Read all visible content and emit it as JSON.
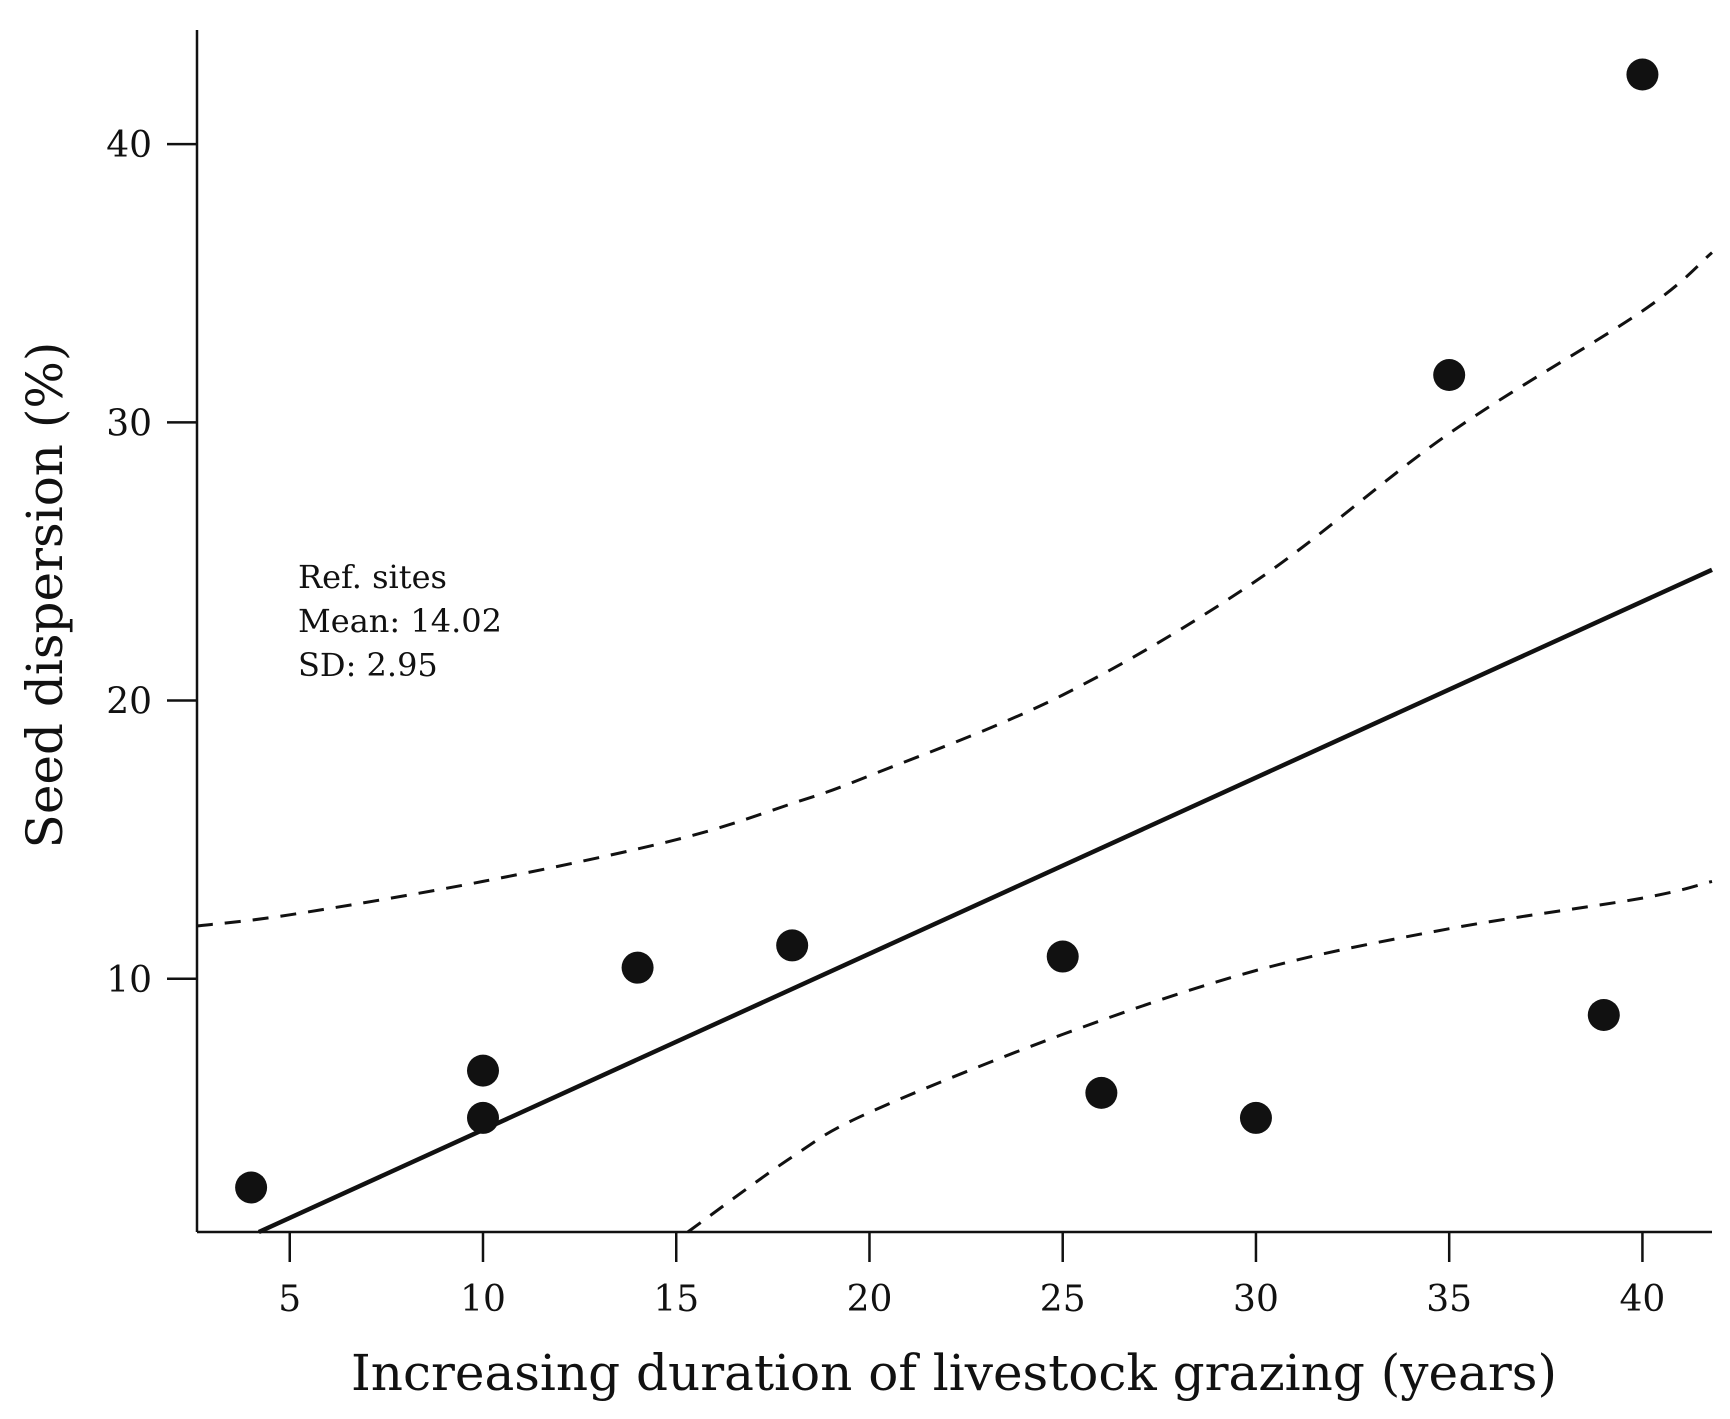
{
  "chart_data": {
    "type": "scatter",
    "title": "",
    "xlabel": "Increasing duration of livestock grazing (years)",
    "ylabel": "Seed dispersion (%)",
    "xlim": [
      2.6,
      41.8
    ],
    "ylim": [
      0.9,
      44.1
    ],
    "xticks": [
      5,
      10,
      15,
      20,
      25,
      30,
      35,
      40
    ],
    "yticks": [
      10,
      20,
      30,
      40
    ],
    "points": [
      {
        "x": 4,
        "y": 2.5
      },
      {
        "x": 10,
        "y": 6.7
      },
      {
        "x": 10,
        "y": 5.0
      },
      {
        "x": 14,
        "y": 10.4
      },
      {
        "x": 18,
        "y": 11.2
      },
      {
        "x": 25,
        "y": 10.8
      },
      {
        "x": 26,
        "y": 5.9
      },
      {
        "x": 30,
        "y": 5.0
      },
      {
        "x": 35,
        "y": 31.7
      },
      {
        "x": 39,
        "y": 8.7
      },
      {
        "x": 40,
        "y": 42.5
      }
    ],
    "fit_line": {
      "x": [
        4.2,
        41.8
      ],
      "y": [
        0.9,
        24.7
      ]
    },
    "upper_ci": {
      "x": [
        2.6,
        5,
        10,
        15,
        18,
        20,
        25,
        30,
        35,
        40,
        41.8
      ],
      "y": [
        11.9,
        12.3,
        13.5,
        15.0,
        16.3,
        17.3,
        20.2,
        24.3,
        29.6,
        34.0,
        36.1
      ]
    },
    "lower_ci": {
      "x": [
        15.3,
        18,
        20,
        25,
        30,
        35,
        40,
        41.8
      ],
      "y": [
        0.9,
        3.6,
        5.2,
        8.0,
        10.3,
        11.8,
        12.9,
        13.5
      ]
    },
    "annotation": {
      "lines": [
        "Ref. sites",
        "Mean: 14.02",
        "SD: 2.95"
      ]
    },
    "colors": {
      "ink": "#111111",
      "background": "#ffffff"
    }
  }
}
